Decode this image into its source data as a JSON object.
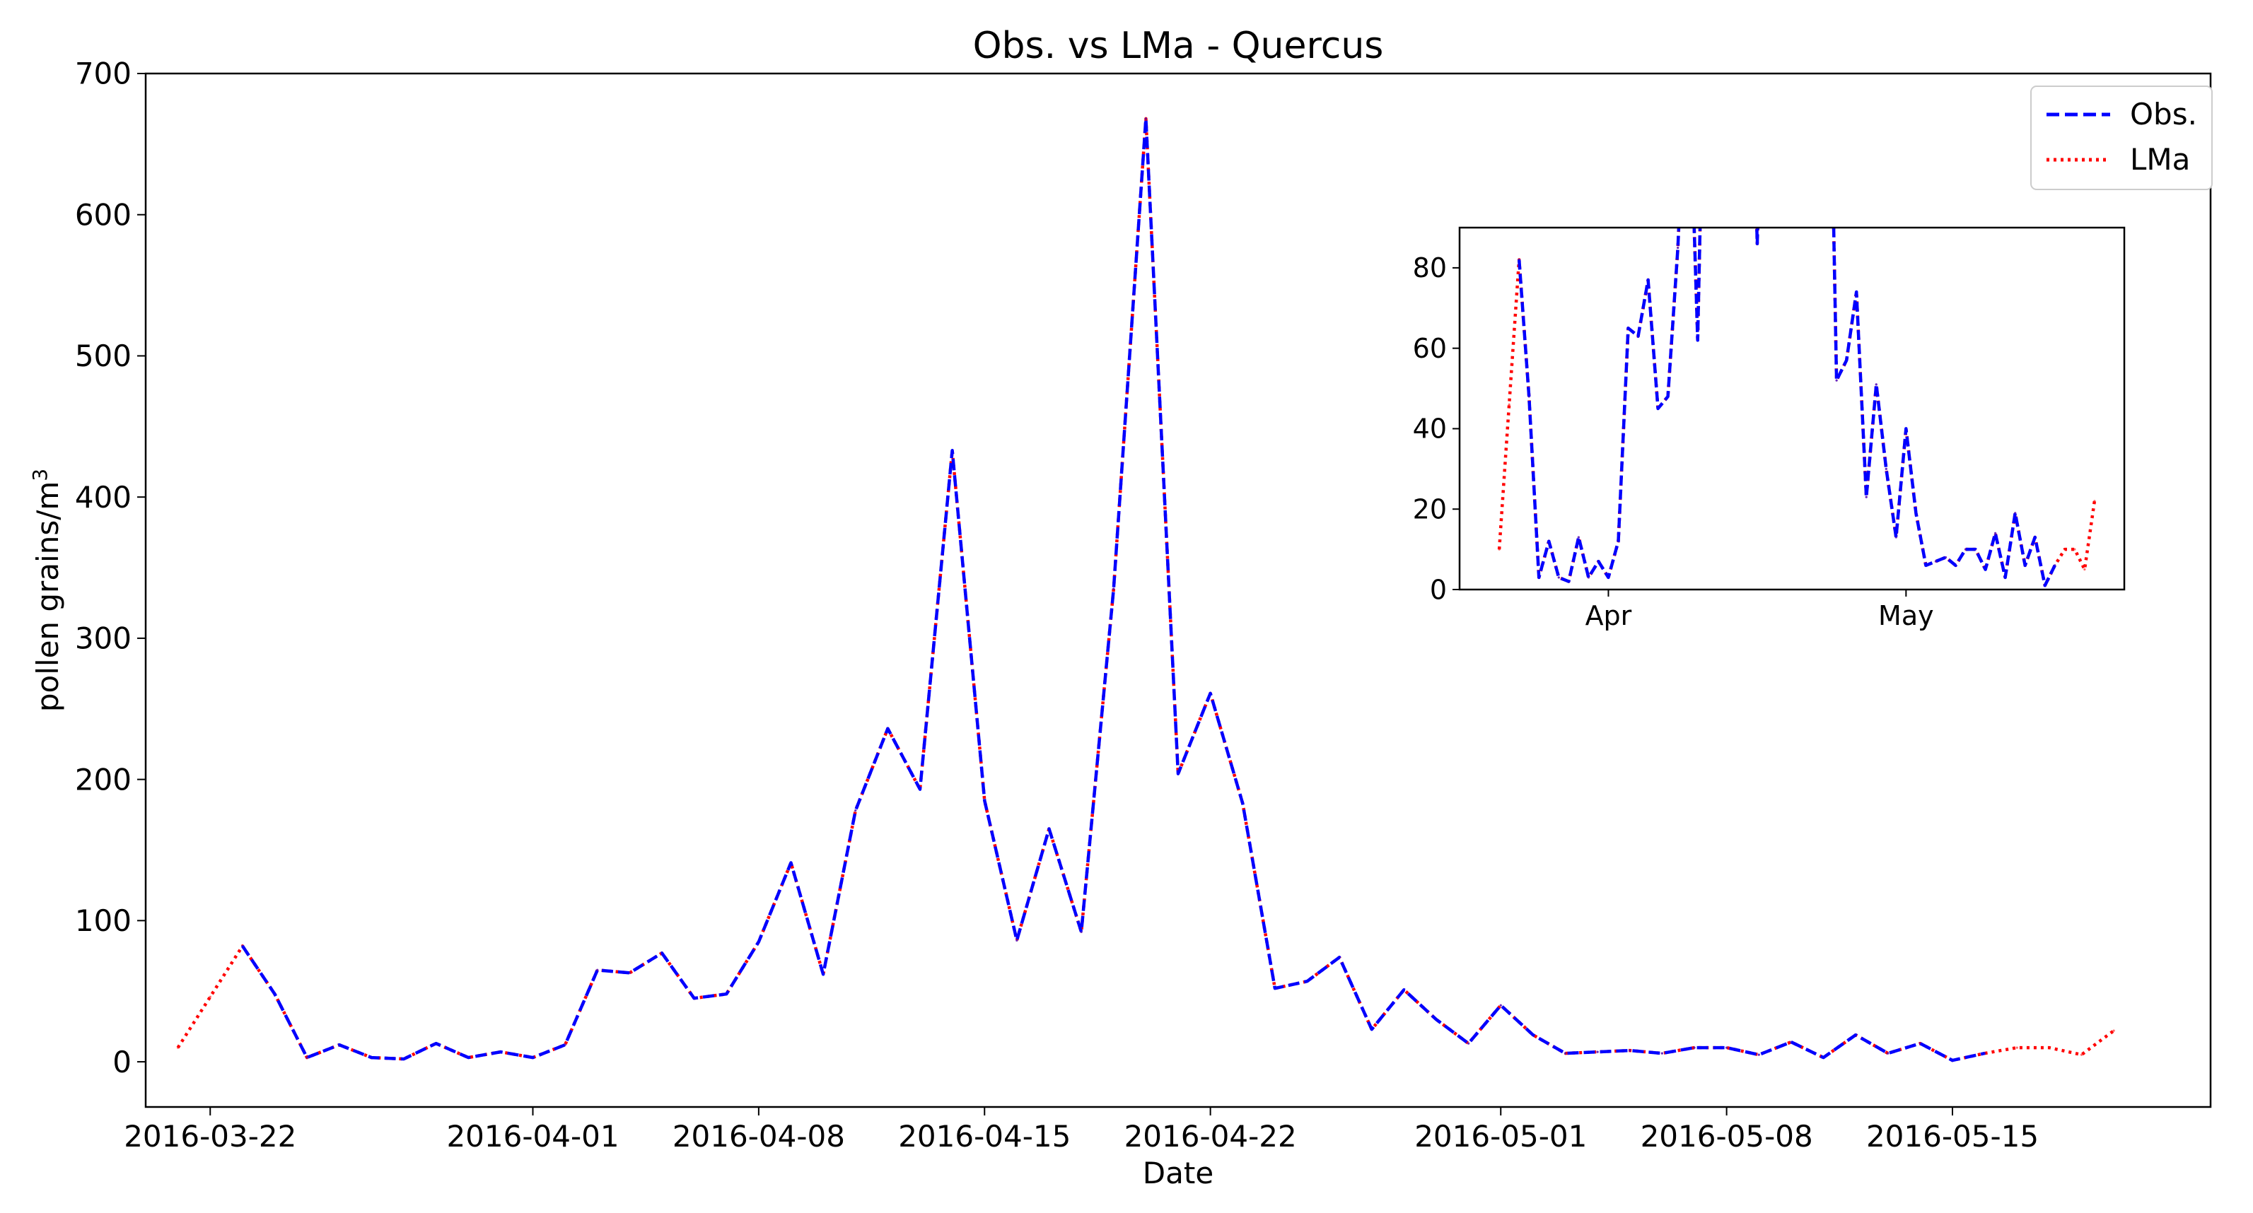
{
  "chart_data": [
    {
      "type": "line",
      "title": "Obs. vs LMa - Quercus",
      "xlabel": "Date",
      "ylabel": "pollen grains/m",
      "ylabel_superscript": "3",
      "xlim": [
        "2016-03-20",
        "2016-05-23"
      ],
      "ylim": [
        -32,
        700
      ],
      "yticks": [
        0,
        100,
        200,
        300,
        400,
        500,
        600,
        700
      ],
      "xticks": [
        "2016-03-22",
        "2016-04-01",
        "2016-04-08",
        "2016-04-15",
        "2016-04-22",
        "2016-05-01",
        "2016-05-08",
        "2016-05-15"
      ],
      "grid": false,
      "legend": {
        "position": "top-right",
        "entries": [
          "Obs.",
          "LMa"
        ]
      },
      "x": [
        "2016-03-21",
        "2016-03-22",
        "2016-03-23",
        "2016-03-24",
        "2016-03-25",
        "2016-03-26",
        "2016-03-27",
        "2016-03-28",
        "2016-03-29",
        "2016-03-30",
        "2016-03-31",
        "2016-04-01",
        "2016-04-02",
        "2016-04-03",
        "2016-04-04",
        "2016-04-05",
        "2016-04-06",
        "2016-04-07",
        "2016-04-08",
        "2016-04-09",
        "2016-04-10",
        "2016-04-11",
        "2016-04-12",
        "2016-04-13",
        "2016-04-14",
        "2016-04-15",
        "2016-04-16",
        "2016-04-17",
        "2016-04-18",
        "2016-04-19",
        "2016-04-20",
        "2016-04-21",
        "2016-04-22",
        "2016-04-23",
        "2016-04-24",
        "2016-04-25",
        "2016-04-26",
        "2016-04-27",
        "2016-04-28",
        "2016-04-29",
        "2016-04-30",
        "2016-05-01",
        "2016-05-02",
        "2016-05-03",
        "2016-05-04",
        "2016-05-05",
        "2016-05-06",
        "2016-05-07",
        "2016-05-08",
        "2016-05-09",
        "2016-05-10",
        "2016-05-11",
        "2016-05-12",
        "2016-05-13",
        "2016-05-14",
        "2016-05-15",
        "2016-05-16",
        "2016-05-17",
        "2016-05-18",
        "2016-05-19",
        "2016-05-20"
      ],
      "series": [
        {
          "name": "Obs.",
          "color": "#0000ff",
          "dash": "dashed",
          "values": [
            null,
            null,
            82,
            48,
            3,
            12,
            3,
            2,
            13,
            3,
            7,
            3,
            12,
            65,
            63,
            77,
            45,
            48,
            85,
            141,
            62,
            178,
            236,
            193,
            433,
            185,
            86,
            165,
            92,
            335,
            668,
            204,
            261,
            183,
            52,
            57,
            74,
            23,
            51,
            30,
            13,
            40,
            19,
            6,
            7,
            8,
            6,
            10,
            10,
            5,
            14,
            3,
            19,
            6,
            13,
            1,
            6,
            null,
            null,
            null,
            null
          ]
        },
        {
          "name": "LMa",
          "color": "#ff0000",
          "dash": "dotted",
          "values": [
            10,
            46,
            82,
            48,
            3,
            12,
            3,
            2,
            13,
            3,
            7,
            3,
            12,
            65,
            63,
            77,
            45,
            48,
            85,
            141,
            62,
            178,
            236,
            193,
            433,
            185,
            86,
            165,
            92,
            335,
            668,
            204,
            261,
            183,
            52,
            57,
            74,
            23,
            51,
            30,
            13,
            40,
            19,
            6,
            7,
            8,
            6,
            10,
            10,
            5,
            14,
            3,
            19,
            6,
            13,
            1,
            6,
            10,
            10,
            5,
            22
          ]
        }
      ]
    },
    {
      "type": "line",
      "title": "",
      "xlabel": "",
      "ylabel": "",
      "xlim": [
        "2016-03-17",
        "2016-05-23"
      ],
      "ylim": [
        0,
        90
      ],
      "yticks": [
        0,
        20,
        40,
        60,
        80
      ],
      "xticks": [
        {
          "date": "2016-04-01",
          "label": "Apr"
        },
        {
          "date": "2016-05-01",
          "label": "May"
        }
      ],
      "grid": false,
      "series_ref": "same as main chart"
    }
  ]
}
